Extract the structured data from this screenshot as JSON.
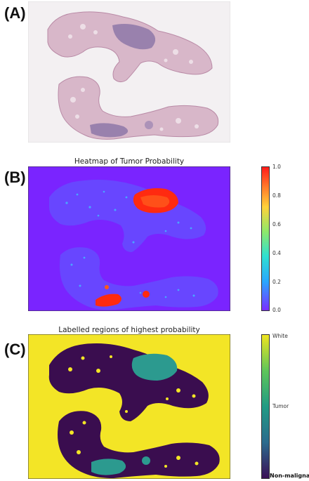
{
  "panels": [
    {
      "label": "(A)"
    },
    {
      "label": "(B)",
      "title": "Heatmap of Tumor Probability"
    },
    {
      "label": "(C)",
      "title": "Labelled regions of highest probability"
    }
  ],
  "colorbar_b": {
    "ticks": [
      "1.0",
      "0.8",
      "0.6",
      "0.4",
      "0.2",
      "0.0"
    ],
    "colors": [
      "#7b2cff",
      "#2aa6ff",
      "#30e0d0",
      "#8fe86a",
      "#ffd23a",
      "#ff7a2a",
      "#ff1a1a"
    ]
  },
  "colorbar_c": {
    "ticks": [
      "White",
      "Tumor",
      "Non-malignant"
    ],
    "colors": [
      "#3b0f56",
      "#2c6b8e",
      "#229b84",
      "#5fc65a",
      "#f0e520"
    ]
  },
  "colors": {
    "slide_bg": "#f3f0f2",
    "tissue": "#d8b7c9",
    "tissue_dense": "#8e78a8",
    "heat_bg": "#7a24ff",
    "heat_hot": "#ff2a10",
    "label_bg": "#f3e526",
    "label_tissue": "#3a0d4f",
    "label_tumor": "#2c9a8f"
  }
}
